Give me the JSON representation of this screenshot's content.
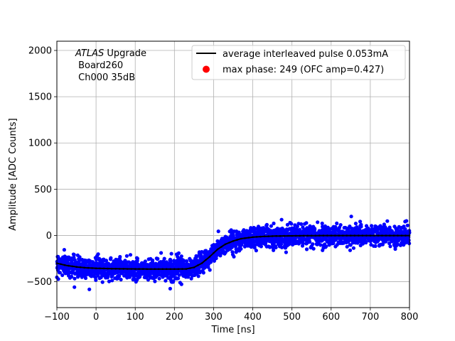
{
  "chart_data": {
    "type": "scatter",
    "title": "",
    "xlabel": "Time [ns]",
    "ylabel": "Amplitude [ADC Counts]",
    "xlim": [
      -100,
      800
    ],
    "ylim": [
      -780,
      2100
    ],
    "xticks": [
      -100,
      0,
      100,
      200,
      300,
      400,
      500,
      600,
      700,
      800
    ],
    "yticks": [
      -500,
      0,
      500,
      1000,
      1500,
      2000
    ],
    "grid": true,
    "legend_position": "top-right",
    "annotation": {
      "italic_word": "ATLAS",
      "line1_rest": " Upgrade",
      "line2": " Board260",
      "line3": " Ch000 35dB"
    },
    "series": [
      {
        "name": "average interleaved pulse 0.053mA",
        "kind": "line",
        "color": "#000000",
        "x": [
          -100,
          -75,
          -50,
          -25,
          0,
          50,
          100,
          150,
          200,
          230,
          250,
          270,
          290,
          310,
          330,
          350,
          370,
          400,
          430,
          460,
          500,
          550,
          600,
          650,
          700,
          750,
          800
        ],
        "y": [
          -300,
          -325,
          -340,
          -350,
          -355,
          -360,
          -362,
          -363,
          -363,
          -362,
          -345,
          -300,
          -230,
          -150,
          -95,
          -60,
          -35,
          -18,
          -10,
          -6,
          -4,
          -2,
          -1,
          -1,
          -1,
          -1,
          -1
        ]
      },
      {
        "name": "max phase: 249 (OFC amp=0.427)",
        "kind": "legend-marker",
        "color": "#ff0000"
      },
      {
        "name": "samples",
        "kind": "scatter",
        "color": "#0000ff",
        "noise_sd_adc": 55,
        "noise_max_adc": 260
      }
    ]
  }
}
